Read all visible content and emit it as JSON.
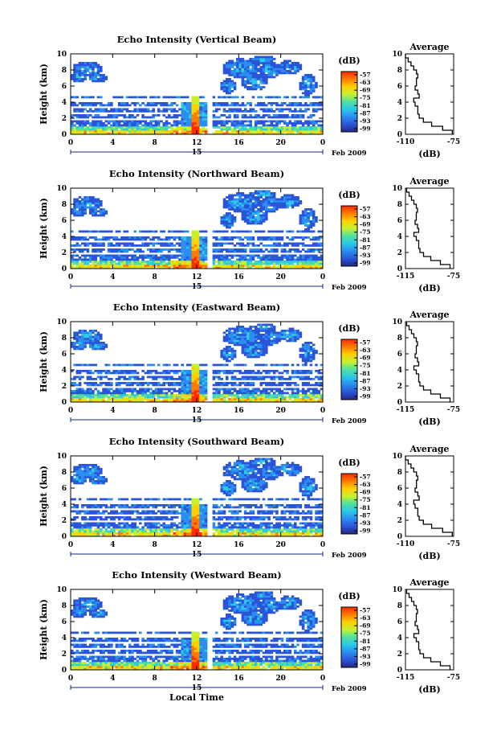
{
  "chart_data": [
    {
      "type": "heatmap",
      "title": "Echo Intensity (Vertical Beam)",
      "ylabel": "Height (km)",
      "x_ticks": [
        "0",
        "4",
        "8",
        "12",
        "16",
        "20",
        "0"
      ],
      "y_ticks": [
        "0",
        "2",
        "4",
        "6",
        "8",
        "10"
      ],
      "xlim": [
        0,
        24
      ],
      "ylim": [
        0,
        10
      ],
      "day_label": "15",
      "month_label": "Feb 2009",
      "colorbar": {
        "unit": "(dB)",
        "ticks": [
          "-57",
          "-63",
          "-69",
          "-75",
          "-81",
          "-87",
          "-93",
          "-99"
        ]
      },
      "average": {
        "title": "Average",
        "xlabel": "(dB)",
        "x_ticks": [
          "-110",
          "-75"
        ],
        "xlim": [
          -110,
          -75
        ],
        "y_ticks": [
          "0",
          "2",
          "4",
          "6",
          "8",
          "10"
        ],
        "profile": {
          "height": [
            0.0,
            0.5,
            1.0,
            1.5,
            2.0,
            2.5,
            3.0,
            3.5,
            4.0,
            4.5,
            5.0,
            5.5,
            6.0,
            6.5,
            7.0,
            7.5,
            8.0,
            8.5,
            9.0,
            9.5
          ],
          "db": [
            -76,
            -83,
            -91,
            -97,
            -100,
            -101,
            -101,
            -103,
            -104,
            -100,
            -101,
            -103,
            -102,
            -102,
            -101,
            -102,
            -104,
            -106,
            -108,
            -110
          ]
        }
      }
    },
    {
      "type": "heatmap",
      "title": "Echo Intensity (Northward Beam)",
      "ylabel": "Height (km)",
      "x_ticks": [
        "0",
        "4",
        "8",
        "12",
        "16",
        "20",
        "0"
      ],
      "y_ticks": [
        "0",
        "2",
        "4",
        "6",
        "8",
        "10"
      ],
      "xlim": [
        0,
        24
      ],
      "ylim": [
        0,
        10
      ],
      "day_label": "15",
      "month_label": "Feb 2009",
      "colorbar": {
        "unit": "(dB)",
        "ticks": [
          "-57",
          "-63",
          "-69",
          "-75",
          "-81",
          "-87",
          "-93",
          "-99"
        ]
      },
      "average": {
        "title": "Average",
        "xlabel": "(dB)",
        "x_ticks": [
          "-115",
          "-75"
        ],
        "xlim": [
          -115,
          -75
        ],
        "y_ticks": [
          "0",
          "2",
          "4",
          "6",
          "8",
          "10"
        ],
        "profile": {
          "height": [
            0.0,
            0.5,
            1.0,
            1.5,
            2.0,
            2.5,
            3.0,
            3.5,
            4.0,
            4.5,
            5.0,
            5.5,
            6.0,
            6.5,
            7.0,
            7.5,
            8.0,
            8.5,
            9.0,
            9.5
          ],
          "db": [
            -78,
            -86,
            -94,
            -100,
            -103,
            -104,
            -104,
            -106,
            -108,
            -104,
            -105,
            -107,
            -106,
            -106,
            -105,
            -106,
            -108,
            -110,
            -112,
            -114
          ]
        }
      }
    },
    {
      "type": "heatmap",
      "title": "Echo Intensity (Eastward Beam)",
      "ylabel": "Height (km)",
      "x_ticks": [
        "0",
        "4",
        "8",
        "12",
        "16",
        "20",
        "0"
      ],
      "y_ticks": [
        "0",
        "2",
        "4",
        "6",
        "8",
        "10"
      ],
      "xlim": [
        0,
        24
      ],
      "ylim": [
        0,
        10
      ],
      "day_label": "15",
      "month_label": "Feb 2009",
      "colorbar": {
        "unit": "(dB)",
        "ticks": [
          "-57",
          "-63",
          "-69",
          "-75",
          "-81",
          "-87",
          "-93",
          "-99"
        ]
      },
      "average": {
        "title": "Average",
        "xlabel": "(dB)",
        "x_ticks": [
          "-115",
          "-75"
        ],
        "xlim": [
          -115,
          -75
        ],
        "y_ticks": [
          "0",
          "2",
          "4",
          "6",
          "8",
          "10"
        ],
        "profile": {
          "height": [
            0.0,
            0.5,
            1.0,
            1.5,
            2.0,
            2.5,
            3.0,
            3.5,
            4.0,
            4.5,
            5.0,
            5.5,
            6.0,
            6.5,
            7.0,
            7.5,
            8.0,
            8.5,
            9.0,
            9.5
          ],
          "db": [
            -78,
            -86,
            -94,
            -100,
            -103,
            -104,
            -104,
            -106,
            -108,
            -104,
            -105,
            -107,
            -106,
            -106,
            -105,
            -106,
            -108,
            -110,
            -112,
            -114
          ]
        }
      }
    },
    {
      "type": "heatmap",
      "title": "Echo Intensity (Southward Beam)",
      "ylabel": "Height (km)",
      "x_ticks": [
        "0",
        "4",
        "8",
        "12",
        "16",
        "20",
        "0"
      ],
      "y_ticks": [
        "0",
        "2",
        "4",
        "6",
        "8",
        "10"
      ],
      "xlim": [
        0,
        24
      ],
      "ylim": [
        0,
        10
      ],
      "day_label": "15",
      "month_label": "Feb 2009",
      "colorbar": {
        "unit": "(dB)",
        "ticks": [
          "-57",
          "-63",
          "-69",
          "-75",
          "-81",
          "-87",
          "-93",
          "-99"
        ]
      },
      "average": {
        "title": "Average",
        "xlabel": "(dB)",
        "x_ticks": [
          "-110",
          "-75"
        ],
        "xlim": [
          -110,
          -75
        ],
        "y_ticks": [
          "0",
          "2",
          "4",
          "6",
          "8",
          "10"
        ],
        "profile": {
          "height": [
            0.0,
            0.5,
            1.0,
            1.5,
            2.0,
            2.5,
            3.0,
            3.5,
            4.0,
            4.5,
            5.0,
            5.5,
            6.0,
            6.5,
            7.0,
            7.5,
            8.0,
            8.5,
            9.0,
            9.5
          ],
          "db": [
            -76,
            -83,
            -91,
            -97,
            -100,
            -101,
            -101,
            -103,
            -104,
            -100,
            -101,
            -103,
            -102,
            -102,
            -101,
            -102,
            -104,
            -106,
            -108,
            -110
          ]
        }
      }
    },
    {
      "type": "heatmap",
      "title": "Echo Intensity (Westward Beam)",
      "ylabel": "Height (km)",
      "xlabel": "Local Time",
      "x_ticks": [
        "0",
        "4",
        "8",
        "12",
        "16",
        "20",
        "0"
      ],
      "y_ticks": [
        "0",
        "2",
        "4",
        "6",
        "8",
        "10"
      ],
      "xlim": [
        0,
        24
      ],
      "ylim": [
        0,
        10
      ],
      "day_label": "15",
      "month_label": "Feb 2009",
      "colorbar": {
        "unit": "(dB)",
        "ticks": [
          "-57",
          "-63",
          "-69",
          "-75",
          "-81",
          "-87",
          "-93",
          "-99"
        ]
      },
      "average": {
        "title": "Average",
        "xlabel": "(dB)",
        "x_ticks": [
          "-115",
          "-75"
        ],
        "xlim": [
          -115,
          -75
        ],
        "y_ticks": [
          "0",
          "2",
          "4",
          "6",
          "8",
          "10"
        ],
        "profile": {
          "height": [
            0.0,
            0.5,
            1.0,
            1.5,
            2.0,
            2.5,
            3.0,
            3.5,
            4.0,
            4.5,
            5.0,
            5.5,
            6.0,
            6.5,
            7.0,
            7.5,
            8.0,
            8.5,
            9.0,
            9.5
          ],
          "db": [
            -78,
            -86,
            -94,
            -100,
            -103,
            -104,
            -104,
            -106,
            -108,
            -104,
            -105,
            -107,
            -106,
            -106,
            -105,
            -106,
            -108,
            -110,
            -112,
            -114
          ]
        }
      }
    }
  ],
  "colorscale": [
    "#ff2a00",
    "#ff7b00",
    "#ffd000",
    "#c8f030",
    "#4fe0a0",
    "#2bc8e8",
    "#2a8ef0",
    "#2a55d8",
    "#252a86"
  ]
}
